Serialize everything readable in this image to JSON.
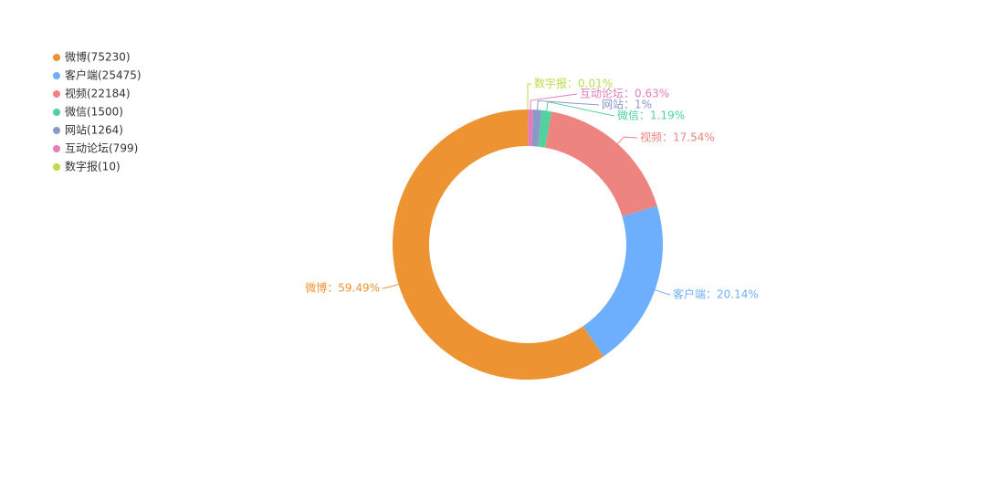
{
  "chart_data": {
    "type": "donut",
    "categories": [
      "微博",
      "客户端",
      "视频",
      "微信",
      "网站",
      "互动论坛",
      "数字报"
    ],
    "values": [
      75230,
      25475,
      22184,
      1500,
      1264,
      799,
      10
    ],
    "legend_labels": [
      "微博(75230)",
      "客户端(25475)",
      "视频(22184)",
      "微信(1500)",
      "网站(1264)",
      "互动论坛(799)",
      "数字报(10)"
    ],
    "value_labels": [
      "微博：59.49%",
      "客户端：20.14%",
      "视频：17.54%",
      "微信：1.19%",
      "网站：1%",
      "互动论坛：0.63%",
      "数字报：0.01%"
    ],
    "colors": [
      "#ee9331",
      "#6daffd",
      "#ed8480",
      "#52d0a0",
      "#8b99c9",
      "#e67db6",
      "#b9dc4a"
    ]
  }
}
